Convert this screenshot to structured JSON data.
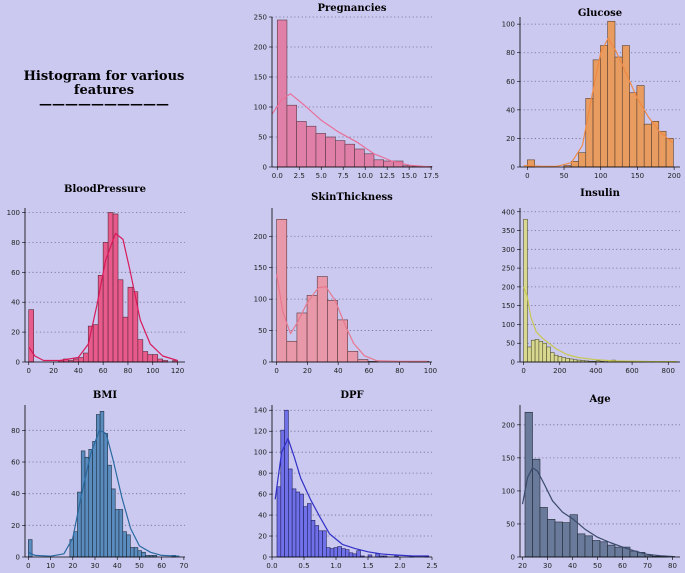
{
  "main_title": {
    "line1": "Histogram for various",
    "line2": "features",
    "underline": "——————————"
  },
  "chart_data": [
    {
      "type": "bar",
      "title": "Pregnancies",
      "xlim": [
        -0.6,
        17.6
      ],
      "ylim": [
        0,
        250
      ],
      "xticks": [
        0,
        2.5,
        5,
        7.5,
        10,
        12.5,
        15,
        17.5
      ],
      "xtick_labels": [
        "0.0",
        "2.5",
        "5.0",
        "7.5",
        "10.0",
        "12.5",
        "15.0",
        "17.5"
      ],
      "yticks": [
        0,
        50,
        100,
        150,
        200,
        250
      ],
      "bin_edges": [
        0,
        1.1,
        2.2,
        3.3,
        4.4,
        5.5,
        6.6,
        7.7,
        8.8,
        9.9,
        11,
        12.1,
        13.2,
        14.3,
        15.4,
        16.5,
        17.6
      ],
      "values": [
        245,
        103,
        76,
        68,
        56,
        50,
        44,
        38,
        30,
        22,
        12,
        10,
        10,
        2,
        1,
        1
      ],
      "kde": [
        [
          -0.6,
          88
        ],
        [
          0.5,
          112
        ],
        [
          1.5,
          122
        ],
        [
          3,
          104
        ],
        [
          5,
          78
        ],
        [
          7,
          58
        ],
        [
          9,
          42
        ],
        [
          11,
          22
        ],
        [
          13,
          10
        ],
        [
          15,
          3
        ],
        [
          17.5,
          0
        ]
      ],
      "color": "#e080a8",
      "edge": "#5a3a48",
      "line": "#e8709a"
    },
    {
      "type": "bar",
      "title": "Glucose",
      "xlim": [
        -10,
        208
      ],
      "ylim": [
        0,
        105
      ],
      "xticks": [
        0,
        50,
        100,
        150,
        200
      ],
      "xtick_labels": [
        "0",
        "50",
        "100",
        "150",
        "200"
      ],
      "yticks": [
        0,
        20,
        40,
        60,
        80,
        100
      ],
      "bin_edges": [
        0,
        9.95,
        19.9,
        29.85,
        39.8,
        49.75,
        59.7,
        69.65,
        79.6,
        89.55,
        99.5,
        109.45,
        119.4,
        129.35,
        139.3,
        149.25,
        159.2,
        169.15,
        179.1,
        189.05,
        199
      ],
      "values": [
        5,
        0,
        0,
        0,
        0,
        1,
        4,
        10,
        48,
        75,
        85,
        102,
        77,
        85,
        52,
        57,
        30,
        32,
        25,
        20
      ],
      "kde": [
        [
          -5,
          1
        ],
        [
          20,
          0.5
        ],
        [
          40,
          0.5
        ],
        [
          60,
          3
        ],
        [
          75,
          15
        ],
        [
          90,
          55
        ],
        [
          100,
          80
        ],
        [
          110,
          90
        ],
        [
          120,
          82
        ],
        [
          135,
          65
        ],
        [
          150,
          48
        ],
        [
          165,
          35
        ],
        [
          180,
          25
        ],
        [
          198,
          17
        ]
      ],
      "color": "#e89c60",
      "edge": "#5a4030",
      "line": "#f08a44"
    },
    {
      "type": "bar",
      "title": "BloodPressure",
      "xlim": [
        -3,
        126
      ],
      "ylim": [
        0,
        103
      ],
      "xticks": [
        0,
        20,
        40,
        60,
        80,
        100,
        120
      ],
      "xtick_labels": [
        "0",
        "20",
        "40",
        "60",
        "80",
        "100",
        "120"
      ],
      "yticks": [
        0,
        20,
        40,
        60,
        80,
        100
      ],
      "bin_edges": [
        0,
        4,
        8,
        12,
        16,
        20,
        24,
        28,
        32,
        36,
        40,
        44,
        48,
        52,
        56,
        60,
        64,
        68,
        72,
        76,
        80,
        84,
        88,
        92,
        96,
        100,
        104,
        108,
        112,
        116,
        120
      ],
      "values": [
        35,
        0,
        0,
        0,
        0,
        0,
        1,
        2,
        1,
        2,
        3,
        6,
        24,
        25,
        58,
        80,
        100,
        99,
        55,
        30,
        50,
        47,
        15,
        7,
        5,
        5,
        2,
        1,
        0,
        1
      ],
      "kde": [
        [
          0,
          10
        ],
        [
          5,
          4
        ],
        [
          12,
          1
        ],
        [
          25,
          1
        ],
        [
          40,
          3
        ],
        [
          48,
          12
        ],
        [
          55,
          38
        ],
        [
          62,
          68
        ],
        [
          70,
          86
        ],
        [
          76,
          82
        ],
        [
          82,
          60
        ],
        [
          90,
          28
        ],
        [
          98,
          12
        ],
        [
          108,
          4
        ],
        [
          120,
          1
        ]
      ],
      "color": "#e85a8c",
      "edge": "#5a2838",
      "line": "#d81a5a"
    },
    {
      "type": "bar",
      "title": "SkinThickness",
      "xlim": [
        -3,
        101
      ],
      "ylim": [
        0,
        245
      ],
      "xticks": [
        0,
        20,
        40,
        60,
        80,
        100
      ],
      "xtick_labels": [
        "0",
        "20",
        "40",
        "60",
        "80",
        "100"
      ],
      "yticks": [
        0,
        50,
        100,
        150,
        200
      ],
      "bin_edges": [
        0,
        6.6,
        13.2,
        19.8,
        26.4,
        33,
        39.6,
        46.2,
        52.8,
        59.4,
        66,
        72.6,
        79.2,
        85.8,
        92.4,
        99
      ],
      "values": [
        227,
        33,
        78,
        106,
        136,
        98,
        67,
        17,
        4,
        1,
        0,
        0,
        0,
        1,
        1
      ],
      "kde": [
        [
          0,
          140
        ],
        [
          4,
          80
        ],
        [
          9,
          45
        ],
        [
          14,
          65
        ],
        [
          20,
          95
        ],
        [
          27,
          118
        ],
        [
          32,
          120
        ],
        [
          38,
          98
        ],
        [
          44,
          62
        ],
        [
          50,
          30
        ],
        [
          57,
          10
        ],
        [
          65,
          2
        ],
        [
          80,
          1
        ],
        [
          98,
          1
        ]
      ],
      "color": "#e898a8",
      "edge": "#5a3840",
      "line": "#e87890"
    },
    {
      "type": "bar",
      "title": "Insulin",
      "xlim": [
        -20,
        865
      ],
      "ylim": [
        0,
        410
      ],
      "xticks": [
        0,
        200,
        400,
        600,
        800
      ],
      "xtick_labels": [
        "0",
        "200",
        "400",
        "600",
        "800"
      ],
      "yticks": [
        0,
        50,
        100,
        150,
        200,
        250,
        300,
        350,
        400
      ],
      "bin_edges": [
        0,
        21.15,
        42.3,
        63.45,
        84.6,
        105.75,
        126.9,
        148.05,
        169.2,
        190.35,
        211.5,
        232.65,
        253.8,
        274.95,
        296.1,
        317.25,
        338.4,
        359.55,
        380.7,
        401.85,
        423,
        444.15,
        465.3,
        486.45,
        507.6,
        528.75,
        549.9,
        571.05,
        592.2,
        613.35,
        634.5,
        655.65,
        676.8,
        697.95,
        719.1,
        740.25,
        761.4,
        782.55,
        803.7,
        824.85,
        846
      ],
      "values": [
        380,
        40,
        58,
        60,
        55,
        50,
        40,
        25,
        18,
        15,
        12,
        10,
        8,
        6,
        5,
        4,
        3,
        2,
        2,
        3,
        2,
        1,
        4,
        5,
        1,
        1,
        1,
        1,
        1,
        1,
        1,
        1,
        0,
        1,
        0,
        0,
        1,
        0,
        0,
        1
      ],
      "kde": [
        [
          0,
          200
        ],
        [
          20,
          175
        ],
        [
          40,
          120
        ],
        [
          70,
          80
        ],
        [
          100,
          65
        ],
        [
          140,
          50
        ],
        [
          180,
          35
        ],
        [
          240,
          20
        ],
        [
          300,
          12
        ],
        [
          400,
          6
        ],
        [
          500,
          3
        ],
        [
          600,
          2
        ],
        [
          700,
          1
        ],
        [
          846,
          1
        ]
      ],
      "color": "#d8d890",
      "edge": "#555530",
      "line": "#c8c850"
    },
    {
      "type": "bar",
      "title": "BMI",
      "xlim": [
        -1.5,
        70.5
      ],
      "ylim": [
        0,
        96
      ],
      "xticks": [
        0,
        10,
        20,
        30,
        40,
        50,
        60,
        70
      ],
      "xtick_labels": [
        "0",
        "10",
        "20",
        "30",
        "40",
        "50",
        "60",
        "70"
      ],
      "yticks": [
        0,
        20,
        40,
        60,
        80
      ],
      "bin_edges": [
        0,
        1.7,
        3.4,
        5.1,
        6.8,
        8.5,
        10.2,
        11.9,
        13.6,
        15.3,
        17,
        18.7,
        20.4,
        22.1,
        23.8,
        25.5,
        27.2,
        28.9,
        30.6,
        32.3,
        34,
        35.7,
        37.4,
        39.1,
        40.8,
        42.5,
        44.2,
        45.9,
        47.6,
        49.3,
        51,
        52.7,
        54.4,
        56.1,
        57.8,
        59.5,
        61.2,
        62.9,
        64.6,
        66.3,
        68
      ],
      "values": [
        11,
        0,
        0,
        0,
        0,
        0,
        0,
        0,
        0,
        0,
        0,
        11,
        16,
        41,
        67,
        63,
        68,
        73,
        90,
        92,
        78,
        58,
        43,
        30,
        30,
        16,
        14,
        6,
        6,
        4,
        3,
        1,
        1,
        1,
        0,
        0,
        0,
        0,
        1,
        0
      ],
      "kde": [
        [
          0,
          3
        ],
        [
          3,
          1
        ],
        [
          10,
          0.5
        ],
        [
          16,
          2
        ],
        [
          20,
          12
        ],
        [
          24,
          40
        ],
        [
          28,
          65
        ],
        [
          32,
          80
        ],
        [
          35,
          78
        ],
        [
          38,
          62
        ],
        [
          42,
          38
        ],
        [
          46,
          18
        ],
        [
          50,
          7
        ],
        [
          55,
          3
        ],
        [
          60,
          1
        ],
        [
          68,
          0.5
        ]
      ],
      "color": "#5a8cc0",
      "edge": "#203040",
      "line": "#2a6aa0"
    },
    {
      "type": "bar",
      "title": "DPF",
      "xlim": [
        0,
        2.5
      ],
      "ylim": [
        0,
        145
      ],
      "xticks": [
        0,
        0.5,
        1,
        1.5,
        2,
        2.5
      ],
      "xtick_labels": [
        "0.0",
        "0.5",
        "1.0",
        "1.5",
        "2.0",
        "2.5"
      ],
      "yticks": [
        0,
        20,
        40,
        60,
        80,
        100,
        120,
        140
      ],
      "bin_edges": [
        0.078,
        0.1373,
        0.1966,
        0.2559,
        0.3152,
        0.3745,
        0.4338,
        0.4931,
        0.5524,
        0.6117,
        0.671,
        0.7303,
        0.7896,
        0.8489,
        0.9082,
        0.9675,
        1.0268,
        1.0861,
        1.1454,
        1.2047,
        1.264,
        1.3233,
        1.3826,
        1.4419,
        1.5012,
        1.5605,
        1.6198,
        1.6791,
        1.7384,
        1.7977,
        1.857,
        1.9163,
        1.9756,
        2.0349,
        2.0942,
        2.1535,
        2.2128,
        2.2721,
        2.3314,
        2.3907,
        2.45
      ],
      "values": [
        67,
        121,
        140,
        84,
        65,
        62,
        60,
        48,
        51,
        35,
        30,
        25,
        25,
        9,
        8,
        9,
        10,
        8,
        7,
        4,
        3,
        6,
        1,
        0,
        2,
        0,
        3,
        1,
        1,
        0,
        0,
        1,
        0,
        0,
        0,
        1,
        0,
        0,
        0,
        1
      ],
      "kde": [
        [
          0.05,
          55
        ],
        [
          0.15,
          100
        ],
        [
          0.25,
          113
        ],
        [
          0.35,
          95
        ],
        [
          0.45,
          75
        ],
        [
          0.6,
          55
        ],
        [
          0.75,
          38
        ],
        [
          0.9,
          22
        ],
        [
          1.1,
          12
        ],
        [
          1.3,
          8
        ],
        [
          1.5,
          5
        ],
        [
          1.7,
          3
        ],
        [
          1.9,
          2
        ],
        [
          2.2,
          1
        ],
        [
          2.45,
          1
        ]
      ],
      "color": "#7070e8",
      "edge": "#202060",
      "line": "#3030c8"
    },
    {
      "type": "bar",
      "title": "Age",
      "xlim": [
        19,
        83
      ],
      "ylim": [
        0,
        230
      ],
      "xticks": [
        20,
        30,
        40,
        50,
        60,
        70,
        80
      ],
      "xtick_labels": [
        "20",
        "30",
        "40",
        "50",
        "60",
        "70",
        "80"
      ],
      "yticks": [
        0,
        50,
        100,
        150,
        200
      ],
      "bin_edges": [
        21,
        24,
        27,
        30,
        33,
        36,
        39,
        42,
        45,
        48,
        51,
        54,
        57,
        60,
        63,
        66,
        69,
        72,
        75,
        78,
        81
      ],
      "values": [
        219,
        148,
        75,
        57,
        53,
        52,
        64,
        35,
        32,
        25,
        23,
        18,
        15,
        15,
        9,
        7,
        2,
        1,
        1,
        0
      ],
      "kde": [
        [
          20,
          80
        ],
        [
          22,
          120
        ],
        [
          24,
          135
        ],
        [
          26,
          130
        ],
        [
          29,
          108
        ],
        [
          32,
          85
        ],
        [
          36,
          68
        ],
        [
          40,
          58
        ],
        [
          45,
          42
        ],
        [
          50,
          30
        ],
        [
          55,
          22
        ],
        [
          60,
          15
        ],
        [
          65,
          9
        ],
        [
          70,
          4
        ],
        [
          75,
          2
        ],
        [
          81,
          0.5
        ]
      ],
      "color": "#6a7a9a",
      "edge": "#202838",
      "line": "#3a4a6a"
    }
  ]
}
